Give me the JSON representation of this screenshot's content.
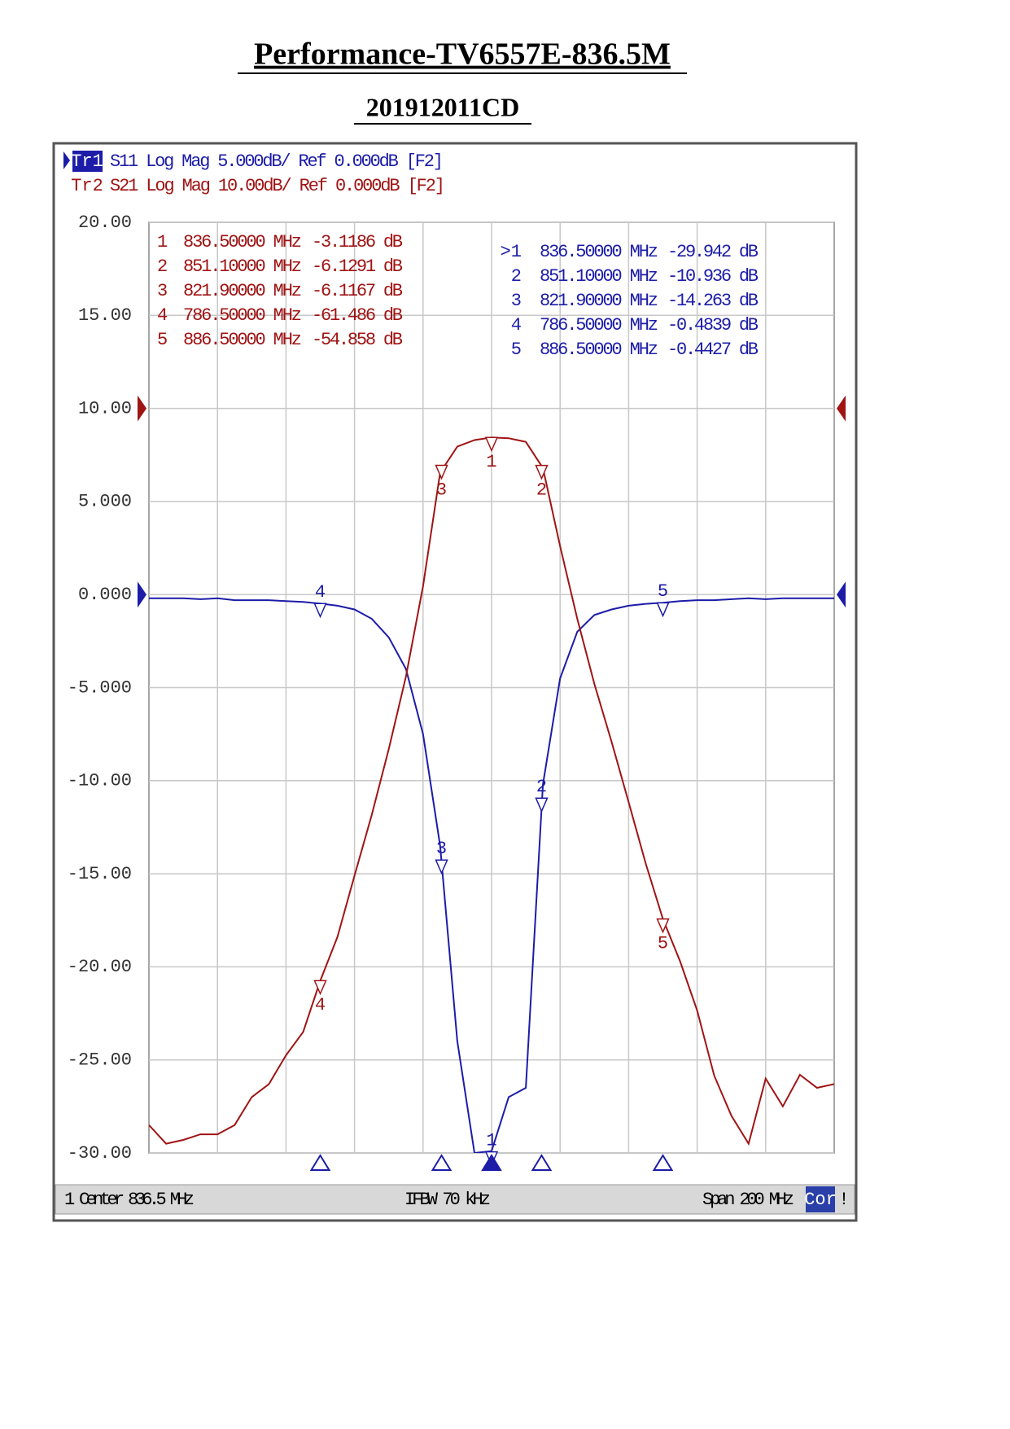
{
  "chart_data": {
    "type": "line",
    "title": "Performance-TV6557E-836.5M",
    "subtitle": "201912011CD",
    "x": [
      736.5,
      741.5,
      746.5,
      751.5,
      756.5,
      761.5,
      766.5,
      771.5,
      776.5,
      781.5,
      786.5,
      791.5,
      796.5,
      801.5,
      806.5,
      811.5,
      816.5,
      821.5,
      826.5,
      831.5,
      836.5,
      841.5,
      846.5,
      851.5,
      856.5,
      861.5,
      866.5,
      871.5,
      876.5,
      881.5,
      886.5,
      891.5,
      896.5,
      901.5,
      906.5,
      911.5,
      916.5,
      921.5,
      926.5,
      931.5,
      936.5
    ],
    "xlim": [
      736.5,
      936.5
    ],
    "ylim": [
      -30,
      20
    ],
    "yticks": [
      {
        "value": 20,
        "label": "20.00"
      },
      {
        "value": 15,
        "label": "15.00"
      },
      {
        "value": 10,
        "label": "10.00"
      },
      {
        "value": 5,
        "label": "5.000"
      },
      {
        "value": 0,
        "label": "0.000"
      },
      {
        "value": -5,
        "label": "-5.000"
      },
      {
        "value": -10,
        "label": "-10.00"
      },
      {
        "value": -15,
        "label": "-15.00"
      },
      {
        "value": -20,
        "label": "-20.00"
      },
      {
        "value": -25,
        "label": "-25.00"
      },
      {
        "value": -30,
        "label": "-30.00"
      }
    ],
    "y2lim": [
      -80,
      20
    ],
    "grid": true,
    "series": [
      {
        "name": "Tr1",
        "description": "S11 Log Mag 5.000dB/ Ref 0.000dB [F2]",
        "color": "#1c1ca8",
        "values": [
          -0.2,
          -0.2,
          -0.2,
          -0.25,
          -0.2,
          -0.3,
          -0.3,
          -0.3,
          -0.35,
          -0.4,
          -0.48,
          -0.6,
          -0.8,
          -1.3,
          -2.3,
          -4.0,
          -7.5,
          -13.5,
          -24,
          -30,
          -29.9,
          -27,
          -26.5,
          -10.2,
          -4.5,
          -2.0,
          -1.1,
          -0.8,
          -0.6,
          -0.5,
          -0.44,
          -0.35,
          -0.3,
          -0.3,
          -0.25,
          -0.2,
          -0.25,
          -0.2,
          -0.2,
          -0.2,
          -0.2
        ],
        "markers": [
          {
            "name": "1",
            "x": 836.5,
            "y": -29.942,
            "readout": [
              ">1",
              "836.50000 MHz",
              "-29.942 dB"
            ]
          },
          {
            "name": "2",
            "x": 851.1,
            "y": -10.936,
            "readout": [
              "2",
              "851.10000 MHz",
              "-10.936 dB"
            ]
          },
          {
            "name": "3",
            "x": 821.9,
            "y": -14.263,
            "readout": [
              "3",
              "821.90000 MHz",
              "-14.263 dB"
            ]
          },
          {
            "name": "4",
            "x": 786.5,
            "y": -0.4839,
            "readout": [
              "4",
              "786.50000 MHz",
              "-0.4839 dB"
            ]
          },
          {
            "name": "5",
            "x": 886.5,
            "y": -0.4427,
            "readout": [
              "5",
              "886.50000 MHz",
              "-0.4427 dB"
            ]
          }
        ]
      },
      {
        "name": "Tr2",
        "description": "S21 Log Mag 10.00dB/ Ref 0.000dB [F2]",
        "color": "#a01414",
        "axis": "y2",
        "values": [
          -77,
          -79,
          -78.6,
          -78,
          -78,
          -77,
          -74,
          -72.6,
          -69.5,
          -67,
          -61.5,
          -56.8,
          -50.2,
          -43.7,
          -36.6,
          -28.8,
          -19.1,
          -6.9,
          -4.1,
          -3.4,
          -3.12,
          -3.2,
          -3.6,
          -6.4,
          -14.8,
          -22.6,
          -29.6,
          -35.8,
          -42.3,
          -48.9,
          -54.86,
          -59.4,
          -64.7,
          -71.7,
          -76,
          -79,
          -72,
          -75,
          -71.6,
          -73,
          -72.6
        ],
        "markers": [
          {
            "name": "1",
            "x": 836.5,
            "y": -3.1186,
            "readout": [
              "1",
              "836.50000 MHz",
              "-3.1186 dB"
            ]
          },
          {
            "name": "2",
            "x": 851.1,
            "y": -6.1291,
            "readout": [
              "2",
              "851.10000 MHz",
              "-6.1291 dB"
            ]
          },
          {
            "name": "3",
            "x": 821.9,
            "y": -6.1167,
            "readout": [
              "3",
              "821.90000 MHz",
              "-6.1167 dB"
            ]
          },
          {
            "name": "4",
            "x": 786.5,
            "y": -61.486,
            "readout": [
              "4",
              "786.50000 MHz",
              "-61.486 dB"
            ]
          },
          {
            "name": "5",
            "x": 886.5,
            "y": -54.858,
            "readout": [
              "5",
              "886.50000 MHz",
              "-54.858 dB"
            ]
          }
        ]
      }
    ],
    "footer": {
      "channel": "1",
      "center": "Center 836.5 MHz",
      "ifbw": "IFBW 70 kHz",
      "span": "Span 200 MHz",
      "correction": "Cor",
      "status": "!"
    }
  }
}
